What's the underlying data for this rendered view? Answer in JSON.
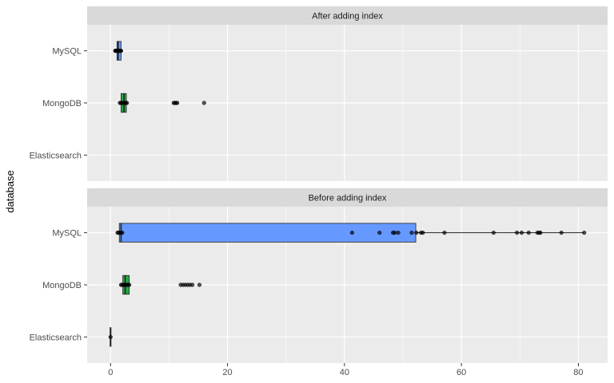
{
  "chart_data": {
    "type": "boxplot",
    "orientation": "horizontal",
    "ylabel": "database",
    "xlabel": "",
    "xlim": [
      -4,
      85
    ],
    "x_ticks": [
      0,
      20,
      40,
      60,
      80
    ],
    "categories": [
      "MySQL",
      "MongoDB",
      "Elasticsearch"
    ],
    "grid": true,
    "legend": "none",
    "colors": {
      "MySQL": "#6699ff",
      "MongoDB": "#22aa44",
      "Elasticsearch": "#f08070",
      "panel_bg": "#ebebeb",
      "strip_bg": "#d9d9d9",
      "gridline": "#ffffff"
    },
    "panels": [
      {
        "title": "After adding index",
        "boxes": [
          {
            "category": "MySQL",
            "whisker_low": 1.0,
            "q1": 1.1,
            "median": 1.3,
            "q3": 1.8,
            "whisker_high": 1.9,
            "outliers": [
              0.8,
              0.9,
              1.0,
              1.1,
              1.2,
              1.3,
              1.4,
              1.5,
              1.6,
              1.7,
              1.8
            ]
          },
          {
            "category": "MongoDB",
            "whisker_low": 1.5,
            "q1": 1.8,
            "median": 2.3,
            "q3": 2.7,
            "whisker_high": 3.0,
            "outliers": [
              1.6,
              1.8,
              2.0,
              2.2,
              2.4,
              2.6,
              2.8,
              10.8,
              11.0,
              11.2,
              11.4,
              16.0
            ]
          },
          {
            "category": "Elasticsearch",
            "whisker_low": null,
            "q1": null,
            "median": null,
            "q3": null,
            "whisker_high": null,
            "outliers": []
          }
        ]
      },
      {
        "title": "Before adding index",
        "boxes": [
          {
            "category": "MySQL",
            "whisker_low": 1.3,
            "q1": 1.5,
            "median": 1.8,
            "q3": 52.2,
            "whisker_high": 81.0,
            "outliers": [
              1.2,
              1.4,
              1.6,
              1.8,
              2.0,
              41.3,
              46.0,
              48.3,
              48.6,
              49.2,
              51.5,
              52.3,
              53.1,
              53.4,
              57.1,
              65.5,
              69.5,
              70.3,
              71.5,
              73.0,
              73.3,
              73.5,
              77.1,
              81.0
            ]
          },
          {
            "category": "MongoDB",
            "whisker_low": 2.0,
            "q1": 2.1,
            "median": 2.5,
            "q3": 3.2,
            "whisker_high": 3.3,
            "outliers": [
              1.8,
              2.0,
              2.2,
              2.4,
              2.6,
              2.8,
              3.0,
              3.2,
              12.0,
              12.4,
              12.8,
              13.2,
              13.6,
              14.0,
              15.2
            ]
          },
          {
            "category": "Elasticsearch",
            "whisker_low": -0.1,
            "q1": 0.0,
            "median": 0.0,
            "q3": 0.0,
            "whisker_high": 0.1,
            "outliers": [
              0.0
            ]
          }
        ]
      }
    ]
  }
}
